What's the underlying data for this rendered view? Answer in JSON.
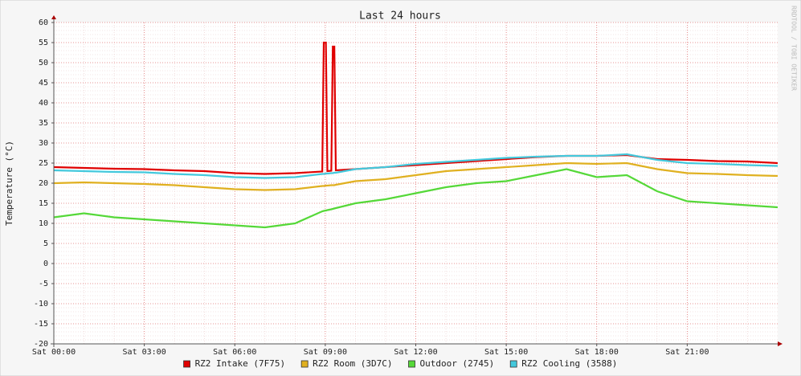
{
  "chart_data": {
    "type": "line",
    "title": "Last 24 hours",
    "y_label": "Temperature (°C)",
    "side_note": "RRDTOOL / TOBI OETIKER",
    "x": [
      0,
      1,
      2,
      3,
      4,
      5,
      6,
      7,
      8,
      8.9,
      8.95,
      9.02,
      9.07,
      9.2,
      9.25,
      9.3,
      9.35,
      10,
      11,
      12,
      13,
      14,
      15,
      16,
      17,
      18,
      19,
      20,
      21,
      22,
      23,
      24
    ],
    "xlim": [
      0,
      24
    ],
    "xticks": [
      {
        "value": 0,
        "label": "Sat 00:00"
      },
      {
        "value": 3,
        "label": "Sat 03:00"
      },
      {
        "value": 6,
        "label": "Sat 06:00"
      },
      {
        "value": 9,
        "label": "Sat 09:00"
      },
      {
        "value": 12,
        "label": "Sat 12:00"
      },
      {
        "value": 15,
        "label": "Sat 15:00"
      },
      {
        "value": 18,
        "label": "Sat 18:00"
      },
      {
        "value": 21,
        "label": "Sat 21:00"
      }
    ],
    "ylim": [
      -20,
      60
    ],
    "yticks": [
      -20,
      -15,
      -10,
      -5,
      0,
      5,
      10,
      15,
      20,
      25,
      30,
      35,
      40,
      45,
      50,
      55,
      60
    ],
    "grid": true,
    "minor_grid": true,
    "series": [
      {
        "name": "RZ2 Intake (7F75)",
        "color": "#e00000",
        "values": [
          24,
          23.8,
          23.6,
          23.5,
          23.2,
          23,
          22.5,
          22.3,
          22.5,
          22.9,
          55,
          55,
          23,
          23.1,
          54,
          54,
          23.2,
          23.5,
          24,
          24.5,
          25,
          25.5,
          26,
          26.5,
          26.8,
          26.8,
          27,
          26,
          25.8,
          25.5,
          25.4,
          25
        ]
      },
      {
        "name": "RZ2 Room (3D7C)",
        "color": "#e0b020",
        "values": [
          20,
          20.2,
          20,
          19.8,
          19.5,
          19,
          18.5,
          18.3,
          18.5,
          19.3,
          19.3,
          19.4,
          19.4,
          19.5,
          19.5,
          19.5,
          19.6,
          20.5,
          21,
          22,
          23,
          23.5,
          24,
          24.5,
          25,
          24.8,
          25,
          23.5,
          22.5,
          22.3,
          22,
          21.8
        ]
      },
      {
        "name": "Outdoor (2745)",
        "color": "#55d838",
        "values": [
          11.5,
          12.5,
          11.5,
          11,
          10.5,
          10,
          9.5,
          9,
          10,
          13,
          13.1,
          13.2,
          13.3,
          13.5,
          13.6,
          13.7,
          13.8,
          15,
          16,
          17.5,
          19,
          20,
          20.5,
          22,
          23.5,
          21.5,
          22,
          18,
          15.5,
          15,
          14.5,
          14
        ]
      },
      {
        "name": "RZ2 Cooling (3588)",
        "color": "#44c8dc",
        "values": [
          23.2,
          23,
          22.8,
          22.7,
          22.3,
          22,
          21.5,
          21.3,
          21.5,
          22.3,
          22.3,
          22.4,
          22.4,
          22.5,
          22.5,
          22.6,
          22.6,
          23.5,
          24,
          24.8,
          25.3,
          25.8,
          26.3,
          26.6,
          26.8,
          26.8,
          27.2,
          25.8,
          25,
          24.8,
          24.5,
          24.3
        ]
      }
    ]
  }
}
